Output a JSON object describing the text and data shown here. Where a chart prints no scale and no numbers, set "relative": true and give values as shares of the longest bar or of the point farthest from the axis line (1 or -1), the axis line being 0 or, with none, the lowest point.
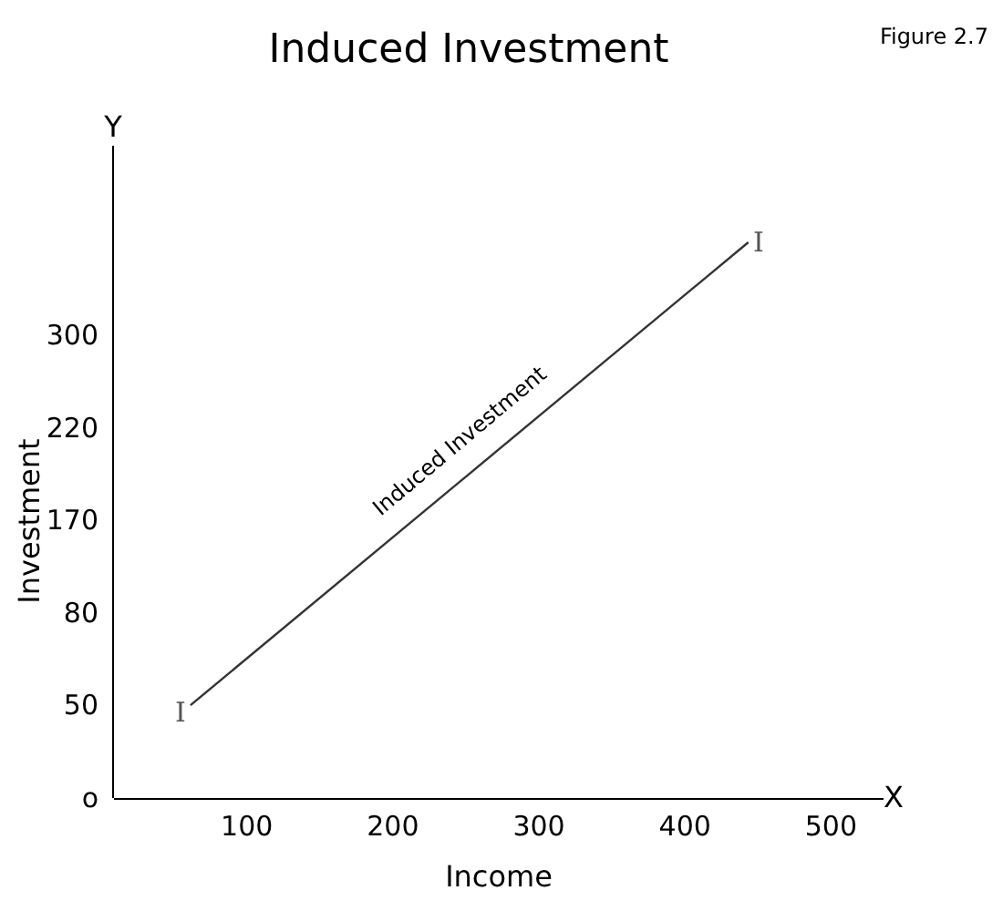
{
  "chart_data": {
    "type": "line",
    "title": "Induced Investment",
    "xlabel": "Income",
    "ylabel": "Investment",
    "x": [
      62,
      444
    ],
    "series": [
      {
        "color": "#333333",
        "values": [
          0.167,
          1
        ]
      }
    ],
    "relative": true,
    "xlim": [
      9,
      536
    ],
    "xticks": [
      100,
      200,
      300,
      400,
      500
    ],
    "grid": false,
    "marker": "none",
    "line_style": "solid",
    "annotations": [
      "Figure 2.7",
      "Induced Investment",
      "I",
      "I",
      "Y",
      "X",
      "o",
      "50",
      "80",
      "170",
      "220",
      "300"
    ]
  }
}
